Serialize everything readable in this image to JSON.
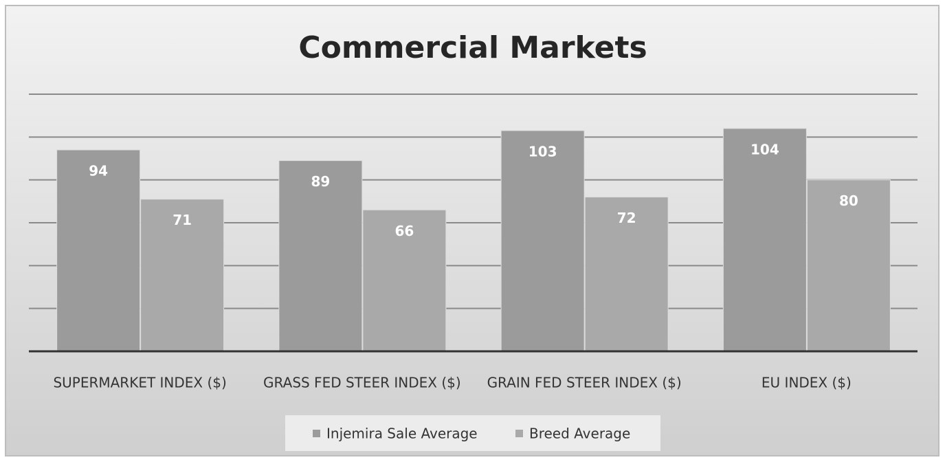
{
  "chart_data": {
    "type": "bar",
    "title": "Commercial Markets",
    "categories": [
      "SUPERMARKET INDEX ($)",
      "GRASS FED STEER INDEX ($)",
      "GRAIN FED STEER INDEX ($)",
      "EU INDEX ($)"
    ],
    "series": [
      {
        "name": "Injemira Sale Average",
        "color": "#9b9b9b",
        "values": [
          94,
          89,
          103,
          104
        ]
      },
      {
        "name": "Breed Average",
        "color": "#a9a9a9",
        "values": [
          71,
          66,
          72,
          80
        ]
      }
    ],
    "ylim": [
      0,
      120
    ],
    "yticks": [
      0,
      20,
      40,
      60,
      80,
      100,
      120
    ],
    "grid": true,
    "legend": "bottom"
  }
}
